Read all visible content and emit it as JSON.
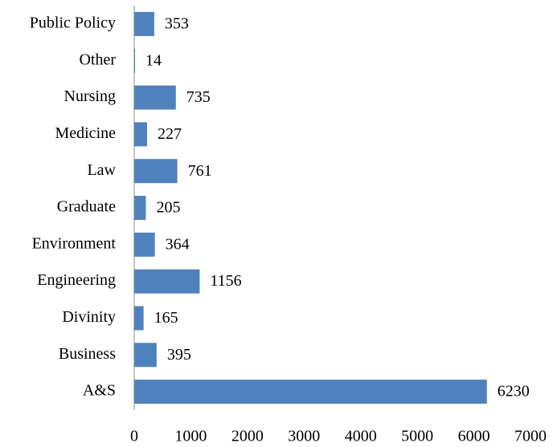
{
  "chart_data": {
    "type": "bar",
    "orientation": "horizontal",
    "categories": [
      "Public Policy",
      "Other",
      "Nursing",
      "Medicine",
      "Law",
      "Graduate",
      "Environment",
      "Engineering",
      "Divinity",
      "Business",
      "A&S"
    ],
    "values": [
      353,
      14,
      735,
      227,
      761,
      205,
      364,
      1156,
      165,
      395,
      6230
    ],
    "color": "#4f81bd",
    "xlim": [
      0,
      7000
    ],
    "xticks": [
      0,
      1000,
      2000,
      3000,
      4000,
      5000,
      6000,
      7000
    ],
    "grid": false
  }
}
